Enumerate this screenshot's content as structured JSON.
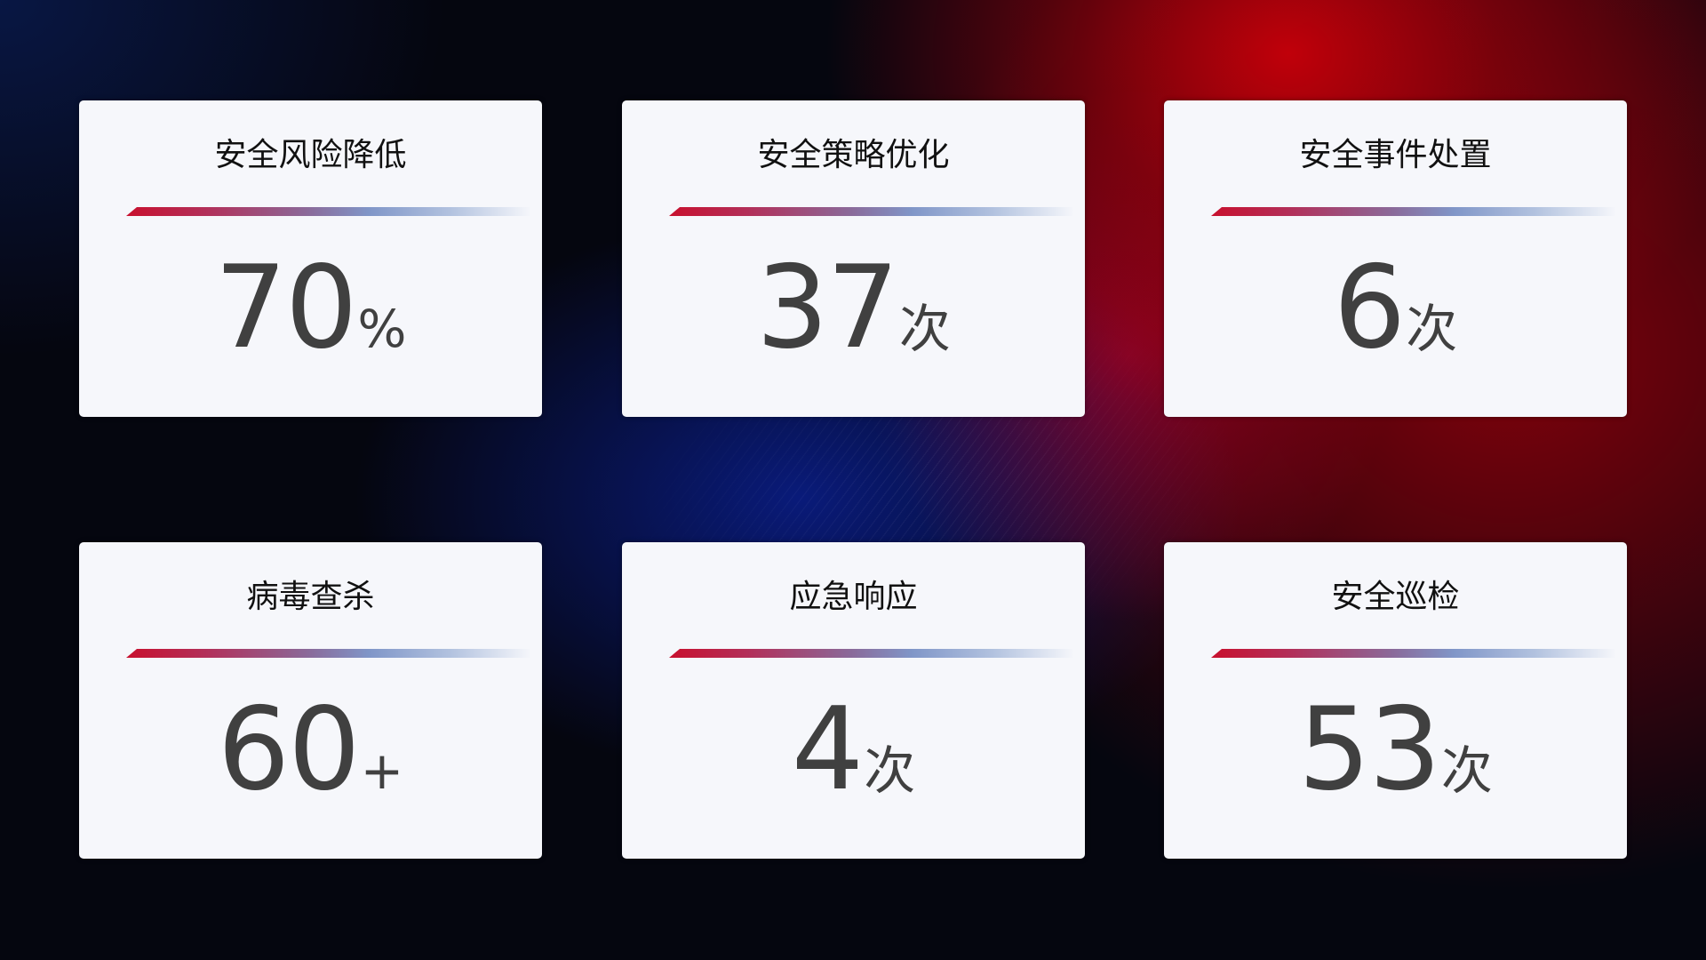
{
  "cards": [
    {
      "title": "安全风险降低",
      "value": "70",
      "unit": "%"
    },
    {
      "title": "安全策略优化",
      "value": "37",
      "unit": "次"
    },
    {
      "title": "安全事件处置",
      "value": "6",
      "unit": "次"
    },
    {
      "title": "病毒查杀",
      "value": "60",
      "unit": "+"
    },
    {
      "title": "应急响应",
      "value": "4",
      "unit": "次"
    },
    {
      "title": "安全巡检",
      "value": "53",
      "unit": "次"
    }
  ],
  "colors": {
    "accent_red": "#c8102e",
    "accent_blue": "#8096c8",
    "card_bg": "#f6f7fb",
    "value_text": "#404040"
  }
}
